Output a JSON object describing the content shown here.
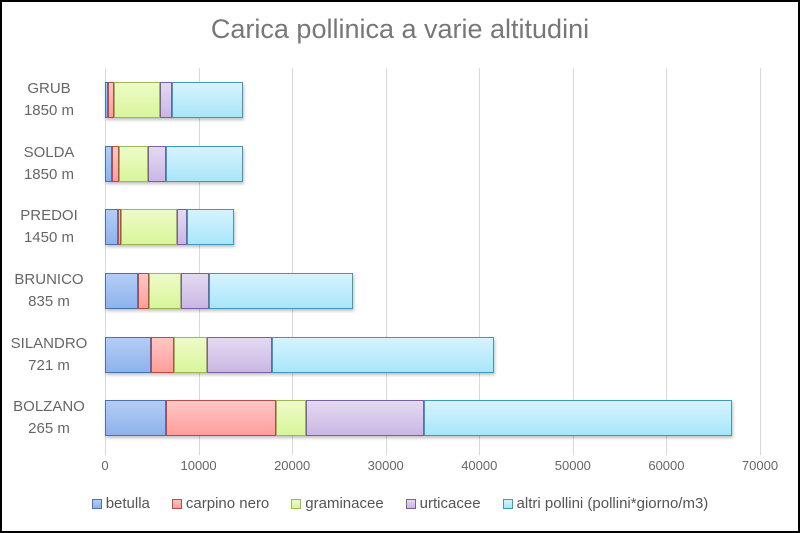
{
  "title": "Carica pollinica a varie altitudini",
  "chart_data": {
    "type": "bar",
    "orientation": "horizontal",
    "stacked": true,
    "title": "Carica pollinica a varie altitudini",
    "xlabel": "",
    "ylabel": "",
    "xlim": [
      0,
      70000
    ],
    "x_ticks": [
      0,
      10000,
      20000,
      30000,
      40000,
      50000,
      60000,
      70000
    ],
    "grid": "vertical",
    "legend_position": "bottom",
    "categories": [
      {
        "name": "GRUB",
        "altitude": "1850 m"
      },
      {
        "name": "SOLDA",
        "altitude": "1850 m"
      },
      {
        "name": "PREDOI",
        "altitude": "1450 m"
      },
      {
        "name": "BRUNICO",
        "altitude": "835 m"
      },
      {
        "name": "SILANDRO",
        "altitude": "721 m"
      },
      {
        "name": "BOLZANO",
        "altitude": "265 m"
      }
    ],
    "series": [
      {
        "name": "betulla",
        "fill": "#b4cdf5",
        "fill2": "#8fb2ec",
        "border": "#4a72b0",
        "values": [
          300,
          800,
          1400,
          3500,
          4900,
          6500
        ]
      },
      {
        "name": "carpino nero",
        "fill": "#ffc7c5",
        "fill2": "#ff9e9b",
        "border": "#b84a48",
        "values": [
          700,
          700,
          300,
          1200,
          2500,
          11800
        ]
      },
      {
        "name": "graminacee",
        "fill": "#eefbc9",
        "fill2": "#d9f59a",
        "border": "#98b954",
        "values": [
          4900,
          3100,
          6000,
          3400,
          3500,
          3200
        ]
      },
      {
        "name": "urticacee",
        "fill": "#e4daf2",
        "fill2": "#c9b7e4",
        "border": "#7b5fa5",
        "values": [
          1300,
          1900,
          1100,
          3000,
          6900,
          12600
        ]
      },
      {
        "name": "altri pollini (pollini*giorno/m3)",
        "fill": "#d7f3fd",
        "fill2": "#a8e6fa",
        "border": "#3e9bb8",
        "values": [
          7600,
          8300,
          5000,
          15400,
          23800,
          32900
        ]
      }
    ]
  },
  "x_tick_labels": [
    "0",
    "10000",
    "20000",
    "30000",
    "40000",
    "50000",
    "60000",
    "70000"
  ],
  "legend": [
    "betulla",
    "carpino nero",
    "graminacee",
    "urticacee",
    "altri pollini (pollini*giorno/m3)"
  ]
}
